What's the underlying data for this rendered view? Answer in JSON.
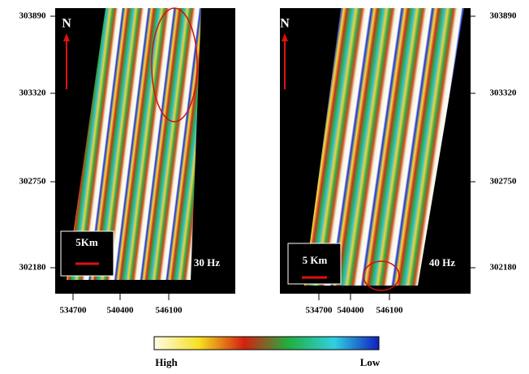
{
  "panels": [
    {
      "north": "N",
      "scale_bar": "5Km",
      "frequency": "30 Hz",
      "yticks": [
        "303890",
        "303320",
        "302750",
        "302180"
      ],
      "xticks": [
        "534700",
        "540400",
        "546100"
      ]
    },
    {
      "north": "N",
      "scale_bar": "5 Km",
      "frequency": "40 Hz",
      "yticks": [
        "303890",
        "303320",
        "302750",
        "302180"
      ],
      "xticks": [
        "534700",
        "540400",
        "546100"
      ]
    }
  ],
  "colorbar": {
    "high": "High",
    "low": "Low"
  }
}
